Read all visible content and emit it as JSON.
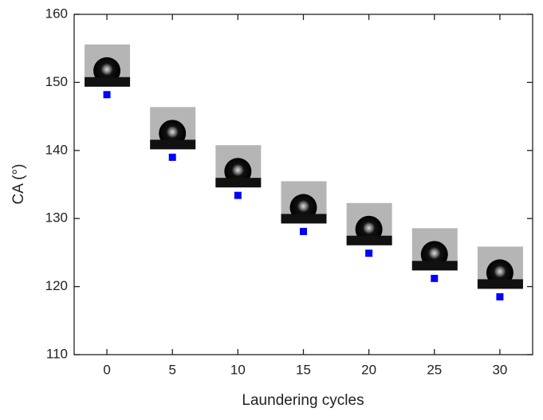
{
  "chart_data": {
    "type": "scatter",
    "x_label": "Laundering cycles",
    "y_label": "CA (°)",
    "x": [
      0,
      5,
      10,
      15,
      20,
      25,
      30
    ],
    "series": [
      {
        "color": "#0000ff",
        "values": [
          148.2,
          139.0,
          133.4,
          128.1,
          124.9,
          121.2,
          118.5
        ]
      }
    ],
    "xlim": [
      -2.5,
      32.5
    ],
    "xticks": [
      0,
      5,
      10,
      15,
      20,
      25,
      30
    ],
    "ylim": [
      110,
      160
    ],
    "yticks": [
      110,
      120,
      130,
      140,
      150,
      160
    ],
    "grid": false
  }
}
